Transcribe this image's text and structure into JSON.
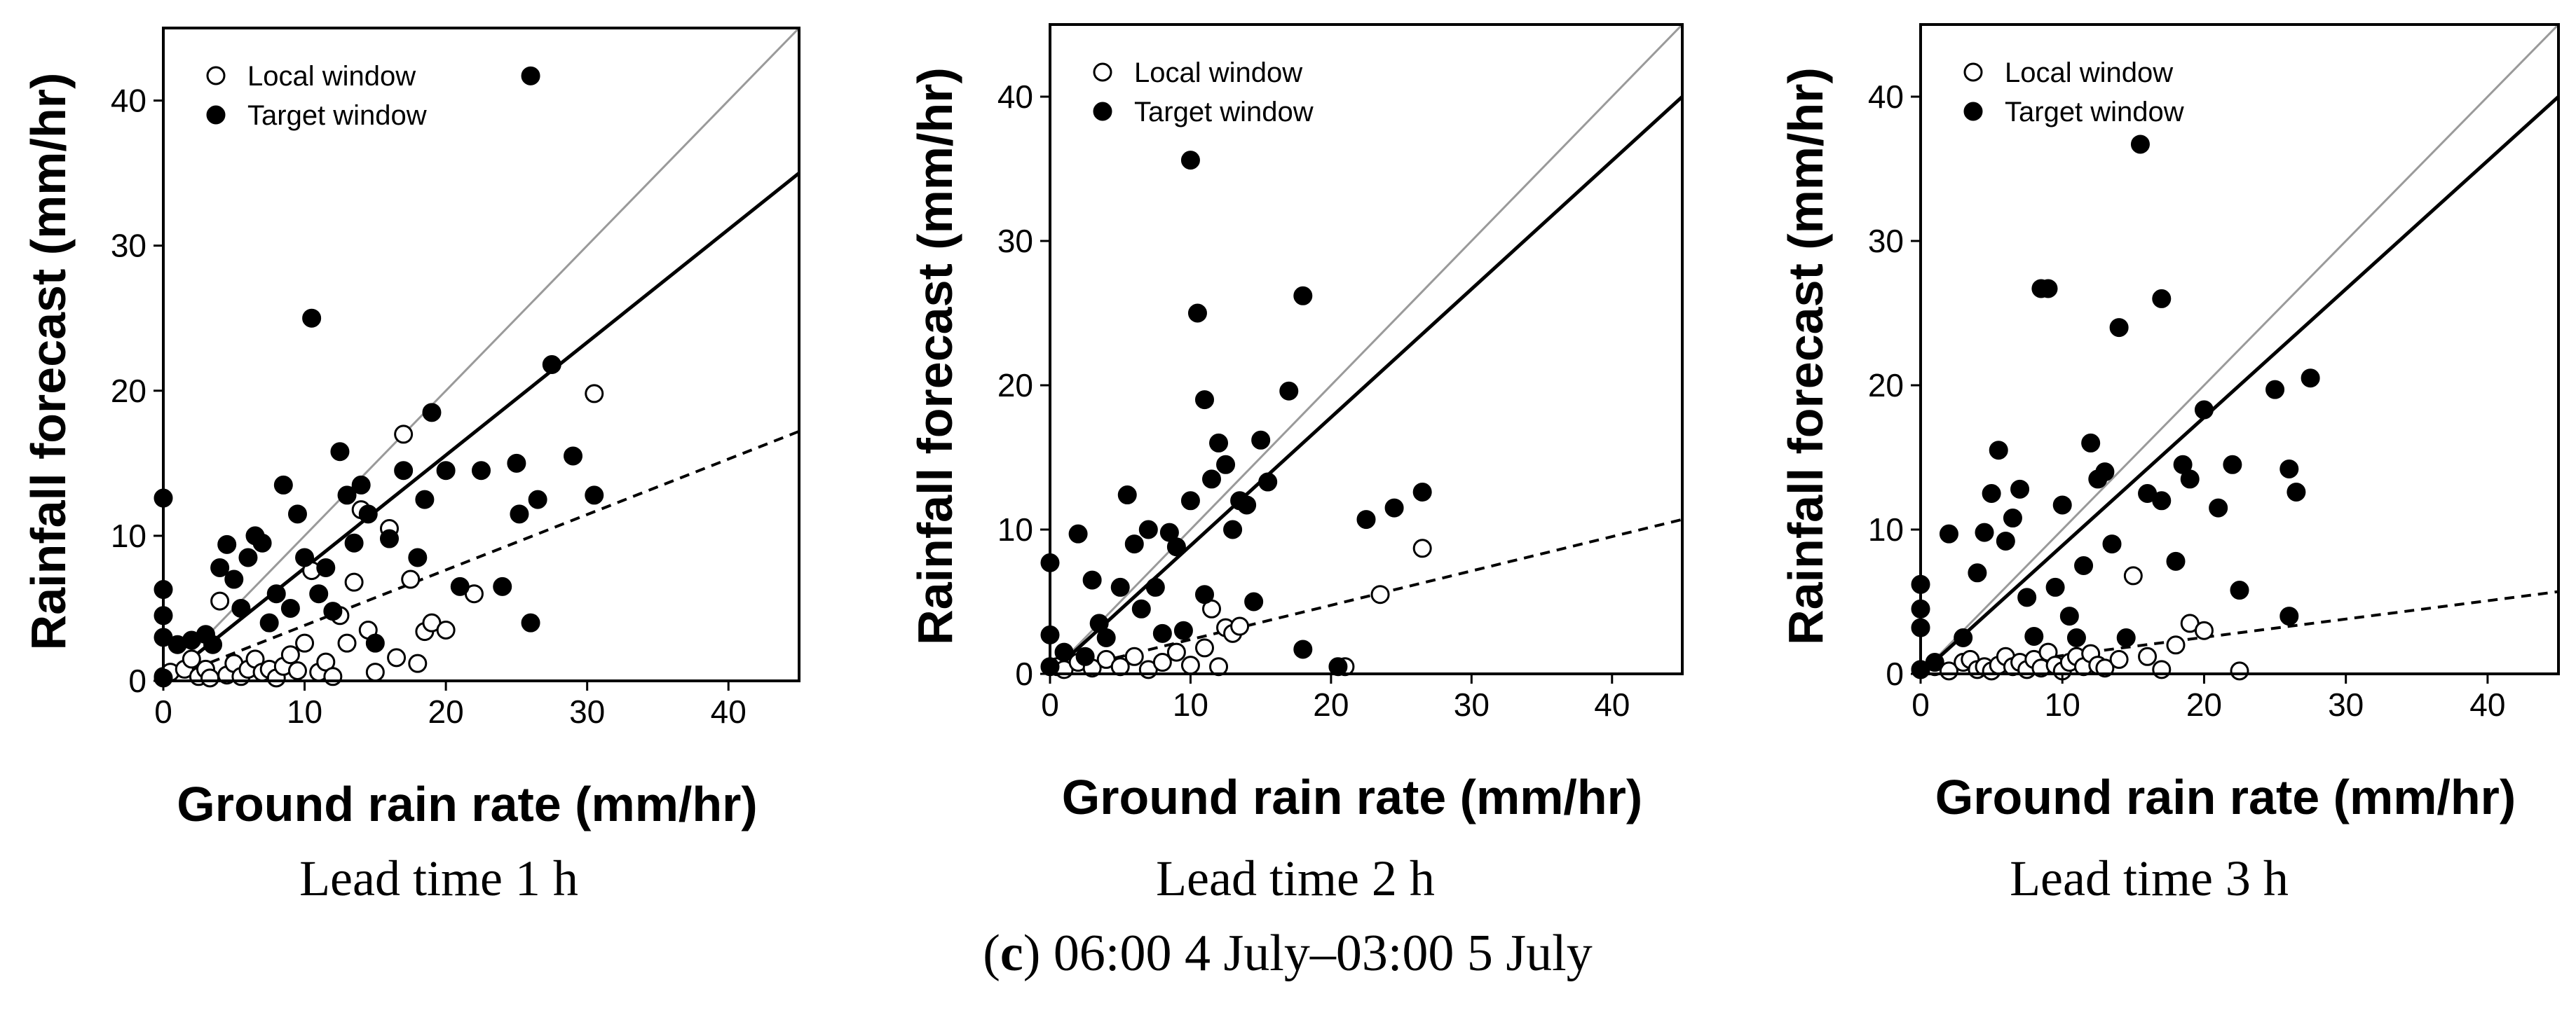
{
  "figure_caption": {
    "label": "c",
    "open": "(",
    "close": ")",
    "text": " 06:00 4 July–03:00 5 July"
  },
  "colors": {
    "identity_line": "#9a9a9a",
    "fit_line": "#000000",
    "local_fit_line": "#000000",
    "marker_local_fill": "#ffffff",
    "marker_target_fill": "#000000"
  },
  "chart_data": [
    {
      "type": "scatter",
      "caption": "Lead time 1 h",
      "xlabel": "Ground rain rate (mm/hr)",
      "ylabel": "Rainfall forecast (mm/hr)",
      "xlim": [
        0,
        45
      ],
      "ylim": [
        0,
        45
      ],
      "xticks": [
        0,
        10,
        20,
        30,
        40
      ],
      "yticks": [
        0,
        10,
        20,
        30,
        40
      ],
      "legend": {
        "position": "top-left",
        "entries": [
          "Local window",
          "Target window"
        ]
      },
      "lines": [
        {
          "name": "1:1 line",
          "kind": "identity",
          "points": [
            [
              0,
              0
            ],
            [
              45,
              45
            ]
          ]
        },
        {
          "name": "Target window fit",
          "kind": "solid",
          "points": [
            [
              0,
              0
            ],
            [
              45,
              35
            ]
          ]
        },
        {
          "name": "Local window fit",
          "kind": "dashed",
          "points": [
            [
              0,
              0
            ],
            [
              45,
              17.2
            ]
          ]
        }
      ],
      "series": [
        {
          "name": "Local window",
          "marker": "open-circle",
          "points": [
            [
              0,
              0.3
            ],
            [
              0.5,
              0.6
            ],
            [
              1.5,
              0.8
            ],
            [
              2,
              1.5
            ],
            [
              2.5,
              0.3
            ],
            [
              3,
              0.8
            ],
            [
              3.3,
              0.2
            ],
            [
              4,
              5.5
            ],
            [
              4.5,
              0.4
            ],
            [
              5,
              1.2
            ],
            [
              5.5,
              0.3
            ],
            [
              6,
              0.8
            ],
            [
              6.5,
              1.5
            ],
            [
              7,
              0.6
            ],
            [
              7.5,
              0.8
            ],
            [
              8,
              0.2
            ],
            [
              8.5,
              1
            ],
            [
              9,
              1.8
            ],
            [
              9.5,
              0.7
            ],
            [
              10,
              2.6
            ],
            [
              10.5,
              7.6
            ],
            [
              11,
              0.6
            ],
            [
              11.5,
              1.3
            ],
            [
              12,
              0.3
            ],
            [
              12.5,
              4.5
            ],
            [
              13,
              2.6
            ],
            [
              13.5,
              6.8
            ],
            [
              14,
              11.8
            ],
            [
              14.5,
              3.5
            ],
            [
              15,
              0.6
            ],
            [
              16,
              10.5
            ],
            [
              16.5,
              1.6
            ],
            [
              17,
              17
            ],
            [
              17.5,
              7
            ],
            [
              18,
              1.2
            ],
            [
              18.5,
              3.4
            ],
            [
              19,
              4
            ],
            [
              20,
              3.5
            ],
            [
              22,
              6
            ],
            [
              30.5,
              19.8
            ]
          ]
        },
        {
          "name": "Target window",
          "marker": "filled-circle",
          "points": [
            [
              0,
              12.6
            ],
            [
              0,
              6.3
            ],
            [
              0,
              4.5
            ],
            [
              0,
              3
            ],
            [
              0,
              0.2
            ],
            [
              1,
              2.5
            ],
            [
              2,
              2.8
            ],
            [
              3,
              3.2
            ],
            [
              3.5,
              2.5
            ],
            [
              4,
              7.8
            ],
            [
              4.5,
              9.4
            ],
            [
              5,
              7
            ],
            [
              5.5,
              5
            ],
            [
              6,
              8.5
            ],
            [
              6.5,
              10
            ],
            [
              7,
              9.5
            ],
            [
              7.5,
              4
            ],
            [
              8,
              6
            ],
            [
              8.5,
              13.5
            ],
            [
              9,
              5
            ],
            [
              9.5,
              11.5
            ],
            [
              10,
              8.5
            ],
            [
              10.5,
              25
            ],
            [
              11,
              6
            ],
            [
              11.5,
              7.8
            ],
            [
              12,
              4.8
            ],
            [
              12.5,
              15.8
            ],
            [
              13,
              12.8
            ],
            [
              13.5,
              9.5
            ],
            [
              14,
              13.5
            ],
            [
              14.5,
              11.5
            ],
            [
              15,
              2.6
            ],
            [
              16,
              9.8
            ],
            [
              17,
              14.5
            ],
            [
              18,
              8.5
            ],
            [
              18.5,
              12.5
            ],
            [
              19,
              18.5
            ],
            [
              20,
              14.5
            ],
            [
              21,
              6.5
            ],
            [
              22.5,
              14.5
            ],
            [
              24,
              6.5
            ],
            [
              25,
              15
            ],
            [
              25.2,
              11.5
            ],
            [
              26,
              41.7
            ],
            [
              26,
              4
            ],
            [
              26.5,
              12.5
            ],
            [
              27.5,
              21.8
            ],
            [
              29,
              15.5
            ],
            [
              30.5,
              12.8
            ]
          ]
        }
      ]
    },
    {
      "type": "scatter",
      "caption": "Lead time 2 h",
      "xlabel": "Ground rain rate (mm/hr)",
      "ylabel": "Rainfall forecast (mm/hr)",
      "xlim": [
        0,
        45
      ],
      "ylim": [
        0,
        45
      ],
      "xticks": [
        0,
        10,
        20,
        30,
        40
      ],
      "yticks": [
        0,
        10,
        20,
        30,
        40
      ],
      "legend": {
        "position": "top-left",
        "entries": [
          "Local window",
          "Target window"
        ]
      },
      "lines": [
        {
          "name": "1:1 line",
          "kind": "identity",
          "points": [
            [
              0,
              0
            ],
            [
              45,
              45
            ]
          ]
        },
        {
          "name": "Target window fit",
          "kind": "solid",
          "points": [
            [
              0,
              0
            ],
            [
              45,
              40
            ]
          ]
        },
        {
          "name": "Local window fit",
          "kind": "dashed",
          "points": [
            [
              0,
              0
            ],
            [
              45,
              10.7
            ]
          ]
        }
      ],
      "series": [
        {
          "name": "Local window",
          "marker": "open-circle",
          "points": [
            [
              0.5,
              0.5
            ],
            [
              1,
              0.3
            ],
            [
              2,
              0.8
            ],
            [
              3,
              0.4
            ],
            [
              4,
              1
            ],
            [
              5,
              0.5
            ],
            [
              6,
              1.2
            ],
            [
              7,
              0.3
            ],
            [
              8,
              0.8
            ],
            [
              9,
              1.5
            ],
            [
              10,
              0.6
            ],
            [
              11,
              1.8
            ],
            [
              11.5,
              4.5
            ],
            [
              12,
              0.5
            ],
            [
              12.5,
              3.2
            ],
            [
              13,
              2.8
            ],
            [
              13.5,
              3.3
            ],
            [
              21,
              0.5
            ],
            [
              23.5,
              5.5
            ],
            [
              26.5,
              8.7
            ]
          ]
        },
        {
          "name": "Target window",
          "marker": "filled-circle",
          "points": [
            [
              0,
              7.7
            ],
            [
              0,
              2.7
            ],
            [
              0,
              0.5
            ],
            [
              1,
              1.5
            ],
            [
              2,
              9.7
            ],
            [
              2.5,
              1.2
            ],
            [
              3,
              6.5
            ],
            [
              3.5,
              3.5
            ],
            [
              4,
              2.5
            ],
            [
              5,
              6
            ],
            [
              5.5,
              12.4
            ],
            [
              6,
              9
            ],
            [
              6.5,
              4.5
            ],
            [
              7,
              10
            ],
            [
              7.5,
              6
            ],
            [
              8,
              2.8
            ],
            [
              8.5,
              9.8
            ],
            [
              9,
              8.8
            ],
            [
              9.5,
              3
            ],
            [
              10,
              35.6
            ],
            [
              10,
              12
            ],
            [
              10.5,
              25
            ],
            [
              11,
              19
            ],
            [
              11,
              5.5
            ],
            [
              11.5,
              13.5
            ],
            [
              12,
              16
            ],
            [
              12.5,
              14.5
            ],
            [
              13,
              10
            ],
            [
              13.5,
              12
            ],
            [
              14,
              11.7
            ],
            [
              14.5,
              5
            ],
            [
              15,
              16.2
            ],
            [
              15.5,
              13.3
            ],
            [
              17,
              19.6
            ],
            [
              18,
              26.2
            ],
            [
              18,
              1.7
            ],
            [
              20.5,
              0.5
            ],
            [
              22.5,
              10.7
            ],
            [
              24.5,
              11.5
            ],
            [
              26.5,
              12.6
            ]
          ]
        }
      ]
    },
    {
      "type": "scatter",
      "caption": "Lead time 3 h",
      "xlabel": "Ground rain rate (mm/hr)",
      "ylabel": "Rainfall forecast (mm/hr)",
      "xlim": [
        0,
        45
      ],
      "ylim": [
        0,
        45
      ],
      "xticks": [
        0,
        10,
        20,
        30,
        40
      ],
      "yticks": [
        0,
        10,
        20,
        30,
        40
      ],
      "legend": {
        "position": "top-left",
        "entries": [
          "Local window",
          "Target window"
        ]
      },
      "lines": [
        {
          "name": "1:1 line",
          "kind": "identity",
          "points": [
            [
              0,
              0
            ],
            [
              45,
              45
            ]
          ]
        },
        {
          "name": "Target window fit",
          "kind": "solid",
          "points": [
            [
              0,
              0
            ],
            [
              45,
              40
            ]
          ]
        },
        {
          "name": "Local window fit",
          "kind": "dashed",
          "points": [
            [
              0,
              0
            ],
            [
              45,
              5.7
            ]
          ]
        }
      ],
      "series": [
        {
          "name": "Local window",
          "marker": "open-circle",
          "points": [
            [
              0,
              0.3
            ],
            [
              1,
              0.5
            ],
            [
              2,
              0.2
            ],
            [
              3,
              0.8
            ],
            [
              3.5,
              1
            ],
            [
              4,
              0.3
            ],
            [
              4.5,
              0.5
            ],
            [
              5,
              0.2
            ],
            [
              5.5,
              0.6
            ],
            [
              6,
              1.2
            ],
            [
              6.5,
              0.5
            ],
            [
              7,
              0.8
            ],
            [
              7.5,
              0.3
            ],
            [
              8,
              1
            ],
            [
              8.5,
              0.4
            ],
            [
              9,
              1.5
            ],
            [
              9.5,
              0.6
            ],
            [
              10,
              0.2
            ],
            [
              10.5,
              0.8
            ],
            [
              11,
              1.2
            ],
            [
              11.5,
              0.5
            ],
            [
              12,
              1.4
            ],
            [
              12.5,
              0.6
            ],
            [
              13,
              0.4
            ],
            [
              14,
              1
            ],
            [
              15,
              6.8
            ],
            [
              16,
              1.2
            ],
            [
              17,
              0.3
            ],
            [
              18,
              2
            ],
            [
              19,
              3.5
            ],
            [
              20,
              3
            ],
            [
              22.5,
              0.2
            ]
          ]
        },
        {
          "name": "Target window",
          "marker": "filled-circle",
          "points": [
            [
              0,
              6.2
            ],
            [
              0,
              4.5
            ],
            [
              0,
              3.2
            ],
            [
              0,
              0.3
            ],
            [
              1,
              0.8
            ],
            [
              2,
              9.7
            ],
            [
              3,
              2.5
            ],
            [
              4,
              7
            ],
            [
              4.5,
              9.8
            ],
            [
              5,
              12.5
            ],
            [
              5.5,
              15.5
            ],
            [
              6,
              9.2
            ],
            [
              6.5,
              10.8
            ],
            [
              7,
              12.8
            ],
            [
              7.5,
              5.3
            ],
            [
              8,
              2.6
            ],
            [
              8.5,
              26.7
            ],
            [
              9,
              26.7
            ],
            [
              9.5,
              6
            ],
            [
              10,
              11.7
            ],
            [
              10.5,
              4
            ],
            [
              11,
              2.5
            ],
            [
              11.5,
              7.5
            ],
            [
              12,
              16
            ],
            [
              12.5,
              13.5
            ],
            [
              13,
              14
            ],
            [
              13.5,
              9
            ],
            [
              14,
              24
            ],
            [
              14.5,
              2.5
            ],
            [
              15.5,
              36.7
            ],
            [
              16,
              12.5
            ],
            [
              17,
              26
            ],
            [
              17,
              12
            ],
            [
              18,
              7.8
            ],
            [
              18.5,
              14.5
            ],
            [
              19,
              13.5
            ],
            [
              20,
              18.3
            ],
            [
              21,
              11.5
            ],
            [
              22,
              14.5
            ],
            [
              22.5,
              5.8
            ],
            [
              25,
              19.7
            ],
            [
              26,
              14.2
            ],
            [
              26,
              4
            ],
            [
              26.5,
              12.6
            ],
            [
              27.5,
              20.5
            ]
          ]
        }
      ]
    }
  ]
}
